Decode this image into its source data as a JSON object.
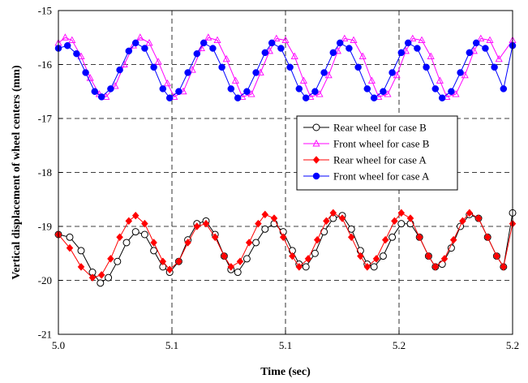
{
  "chart_data": {
    "type": "line",
    "title": "",
    "xlabel": "Time (sec)",
    "ylabel": "Vertical displacement of wheel centers (mm)",
    "xlim": [
      5.0,
      5.2
    ],
    "ylim": [
      -21,
      -15
    ],
    "x_ticks": [
      5.0,
      5.05,
      5.1,
      5.15,
      5.2
    ],
    "x_tick_labels": [
      "5.0",
      "5.1",
      "5.1",
      "5.2",
      "5.2"
    ],
    "y_ticks": [
      -15,
      -16,
      -17,
      -18,
      -19,
      -20,
      -21
    ],
    "y_tick_labels": [
      "-15",
      "-16",
      "-17",
      "-18",
      "-19",
      "-20",
      "-21"
    ],
    "grid": "dashed, major ticks",
    "legend_position": "center-right",
    "legend": [
      "Rear wheel for case B",
      "Front wheel for case B",
      "Rear wheel for case A",
      "Front wheel for case A"
    ],
    "series": [
      {
        "name": "Rear wheel for case B",
        "color": "#000000",
        "marker": "open-circle",
        "points": [
          [
            5.0,
            -19.15
          ],
          [
            5.005,
            -19.2
          ],
          [
            5.01,
            -19.45
          ],
          [
            5.015,
            -19.85
          ],
          [
            5.0185,
            -20.05
          ],
          [
            5.022,
            -19.95
          ],
          [
            5.026,
            -19.65
          ],
          [
            5.03,
            -19.3
          ],
          [
            5.034,
            -19.1
          ],
          [
            5.038,
            -19.15
          ],
          [
            5.042,
            -19.45
          ],
          [
            5.046,
            -19.75
          ],
          [
            5.049,
            -19.85
          ],
          [
            5.053,
            -19.65
          ],
          [
            5.057,
            -19.25
          ],
          [
            5.061,
            -18.95
          ],
          [
            5.065,
            -18.9
          ],
          [
            5.069,
            -19.15
          ],
          [
            5.073,
            -19.55
          ],
          [
            5.076,
            -19.8
          ],
          [
            5.079,
            -19.85
          ],
          [
            5.083,
            -19.6
          ],
          [
            5.087,
            -19.3
          ],
          [
            5.091,
            -19.05
          ],
          [
            5.095,
            -18.95
          ],
          [
            5.099,
            -19.1
          ],
          [
            5.103,
            -19.45
          ],
          [
            5.106,
            -19.7
          ],
          [
            5.109,
            -19.75
          ],
          [
            5.113,
            -19.5
          ],
          [
            5.117,
            -19.1
          ],
          [
            5.121,
            -18.85
          ],
          [
            5.125,
            -18.8
          ],
          [
            5.129,
            -19.05
          ],
          [
            5.133,
            -19.45
          ],
          [
            5.136,
            -19.7
          ],
          [
            5.139,
            -19.75
          ],
          [
            5.143,
            -19.55
          ],
          [
            5.147,
            -19.2
          ],
          [
            5.151,
            -18.95
          ],
          [
            5.155,
            -18.95
          ],
          [
            5.159,
            -19.2
          ],
          [
            5.163,
            -19.55
          ],
          [
            5.166,
            -19.75
          ],
          [
            5.169,
            -19.7
          ],
          [
            5.173,
            -19.4
          ],
          [
            5.177,
            -19.0
          ],
          [
            5.181,
            -18.78
          ],
          [
            5.185,
            -18.85
          ],
          [
            5.189,
            -19.2
          ],
          [
            5.193,
            -19.55
          ],
          [
            5.196,
            -19.75
          ],
          [
            5.2,
            -18.75
          ]
        ]
      },
      {
        "name": "Front wheel for case B",
        "color": "#ff00ff",
        "marker": "open-triangle",
        "points": [
          [
            5.0,
            -15.6
          ],
          [
            5.003,
            -15.5
          ],
          [
            5.006,
            -15.55
          ],
          [
            5.01,
            -15.85
          ],
          [
            5.014,
            -16.25
          ],
          [
            5.018,
            -16.55
          ],
          [
            5.021,
            -16.6
          ],
          [
            5.025,
            -16.4
          ],
          [
            5.029,
            -16.0
          ],
          [
            5.033,
            -15.65
          ],
          [
            5.036,
            -15.5
          ],
          [
            5.04,
            -15.6
          ],
          [
            5.044,
            -15.95
          ],
          [
            5.048,
            -16.35
          ],
          [
            5.051,
            -16.6
          ],
          [
            5.055,
            -16.5
          ],
          [
            5.059,
            -16.1
          ],
          [
            5.063,
            -15.7
          ],
          [
            5.066,
            -15.5
          ],
          [
            5.07,
            -15.55
          ],
          [
            5.074,
            -15.9
          ],
          [
            5.078,
            -16.3
          ],
          [
            5.081,
            -16.6
          ],
          [
            5.085,
            -16.55
          ],
          [
            5.089,
            -16.15
          ],
          [
            5.093,
            -15.75
          ],
          [
            5.096,
            -15.52
          ],
          [
            5.1,
            -15.55
          ],
          [
            5.104,
            -15.85
          ],
          [
            5.108,
            -16.3
          ],
          [
            5.111,
            -16.6
          ],
          [
            5.115,
            -16.55
          ],
          [
            5.119,
            -16.2
          ],
          [
            5.123,
            -15.75
          ],
          [
            5.126,
            -15.52
          ],
          [
            5.13,
            -15.55
          ],
          [
            5.134,
            -15.85
          ],
          [
            5.138,
            -16.3
          ],
          [
            5.141,
            -16.6
          ],
          [
            5.145,
            -16.55
          ],
          [
            5.149,
            -16.2
          ],
          [
            5.153,
            -15.75
          ],
          [
            5.156,
            -15.52
          ],
          [
            5.16,
            -15.55
          ],
          [
            5.164,
            -15.85
          ],
          [
            5.168,
            -16.3
          ],
          [
            5.171,
            -16.6
          ],
          [
            5.175,
            -16.55
          ],
          [
            5.179,
            -16.2
          ],
          [
            5.183,
            -15.75
          ],
          [
            5.186,
            -15.52
          ],
          [
            5.19,
            -15.55
          ],
          [
            5.194,
            -15.9
          ],
          [
            5.2,
            -15.55
          ]
        ]
      },
      {
        "name": "Rear wheel for case A",
        "color": "#ff0000",
        "marker": "filled-diamond",
        "points": [
          [
            5.0,
            -19.15
          ],
          [
            5.005,
            -19.4
          ],
          [
            5.01,
            -19.75
          ],
          [
            5.015,
            -19.95
          ],
          [
            5.019,
            -19.9
          ],
          [
            5.023,
            -19.6
          ],
          [
            5.027,
            -19.2
          ],
          [
            5.031,
            -18.9
          ],
          [
            5.034,
            -18.8
          ],
          [
            5.038,
            -18.95
          ],
          [
            5.042,
            -19.3
          ],
          [
            5.046,
            -19.65
          ],
          [
            5.049,
            -19.8
          ],
          [
            5.053,
            -19.65
          ],
          [
            5.057,
            -19.3
          ],
          [
            5.061,
            -19.0
          ],
          [
            5.065,
            -18.95
          ],
          [
            5.069,
            -19.2
          ],
          [
            5.073,
            -19.55
          ],
          [
            5.076,
            -19.75
          ],
          [
            5.08,
            -19.65
          ],
          [
            5.084,
            -19.3
          ],
          [
            5.088,
            -18.95
          ],
          [
            5.091,
            -18.78
          ],
          [
            5.095,
            -18.85
          ],
          [
            5.099,
            -19.2
          ],
          [
            5.103,
            -19.55
          ],
          [
            5.106,
            -19.75
          ],
          [
            5.11,
            -19.6
          ],
          [
            5.114,
            -19.25
          ],
          [
            5.118,
            -18.9
          ],
          [
            5.121,
            -18.75
          ],
          [
            5.125,
            -18.85
          ],
          [
            5.129,
            -19.2
          ],
          [
            5.133,
            -19.55
          ],
          [
            5.136,
            -19.75
          ],
          [
            5.14,
            -19.6
          ],
          [
            5.144,
            -19.25
          ],
          [
            5.148,
            -18.9
          ],
          [
            5.151,
            -18.75
          ],
          [
            5.155,
            -18.85
          ],
          [
            5.159,
            -19.2
          ],
          [
            5.163,
            -19.55
          ],
          [
            5.166,
            -19.75
          ],
          [
            5.17,
            -19.6
          ],
          [
            5.174,
            -19.25
          ],
          [
            5.178,
            -18.9
          ],
          [
            5.181,
            -18.75
          ],
          [
            5.185,
            -18.85
          ],
          [
            5.189,
            -19.2
          ],
          [
            5.193,
            -19.55
          ],
          [
            5.196,
            -19.75
          ],
          [
            5.2,
            -18.95
          ]
        ]
      },
      {
        "name": "Front wheel for case A",
        "color": "#0000ff",
        "marker": "filled-circle",
        "points": [
          [
            5.0,
            -15.7
          ],
          [
            5.004,
            -15.65
          ],
          [
            5.008,
            -15.8
          ],
          [
            5.012,
            -16.15
          ],
          [
            5.016,
            -16.5
          ],
          [
            5.019,
            -16.6
          ],
          [
            5.023,
            -16.45
          ],
          [
            5.027,
            -16.1
          ],
          [
            5.031,
            -15.75
          ],
          [
            5.034,
            -15.6
          ],
          [
            5.038,
            -15.7
          ],
          [
            5.042,
            -16.05
          ],
          [
            5.046,
            -16.45
          ],
          [
            5.049,
            -16.62
          ],
          [
            5.053,
            -16.5
          ],
          [
            5.057,
            -16.15
          ],
          [
            5.061,
            -15.8
          ],
          [
            5.064,
            -15.6
          ],
          [
            5.068,
            -15.7
          ],
          [
            5.072,
            -16.05
          ],
          [
            5.076,
            -16.45
          ],
          [
            5.079,
            -16.62
          ],
          [
            5.083,
            -16.5
          ],
          [
            5.087,
            -16.15
          ],
          [
            5.091,
            -15.78
          ],
          [
            5.094,
            -15.6
          ],
          [
            5.098,
            -15.7
          ],
          [
            5.102,
            -16.05
          ],
          [
            5.106,
            -16.45
          ],
          [
            5.109,
            -16.62
          ],
          [
            5.113,
            -16.5
          ],
          [
            5.117,
            -16.15
          ],
          [
            5.121,
            -15.78
          ],
          [
            5.124,
            -15.6
          ],
          [
            5.128,
            -15.7
          ],
          [
            5.132,
            -16.05
          ],
          [
            5.136,
            -16.45
          ],
          [
            5.139,
            -16.62
          ],
          [
            5.143,
            -16.5
          ],
          [
            5.147,
            -16.15
          ],
          [
            5.151,
            -15.78
          ],
          [
            5.154,
            -15.6
          ],
          [
            5.158,
            -15.7
          ],
          [
            5.162,
            -16.05
          ],
          [
            5.166,
            -16.45
          ],
          [
            5.169,
            -16.62
          ],
          [
            5.173,
            -16.5
          ],
          [
            5.177,
            -16.15
          ],
          [
            5.181,
            -15.78
          ],
          [
            5.184,
            -15.6
          ],
          [
            5.188,
            -15.7
          ],
          [
            5.192,
            -16.05
          ],
          [
            5.196,
            -16.45
          ],
          [
            5.2,
            -15.65
          ]
        ]
      }
    ]
  }
}
